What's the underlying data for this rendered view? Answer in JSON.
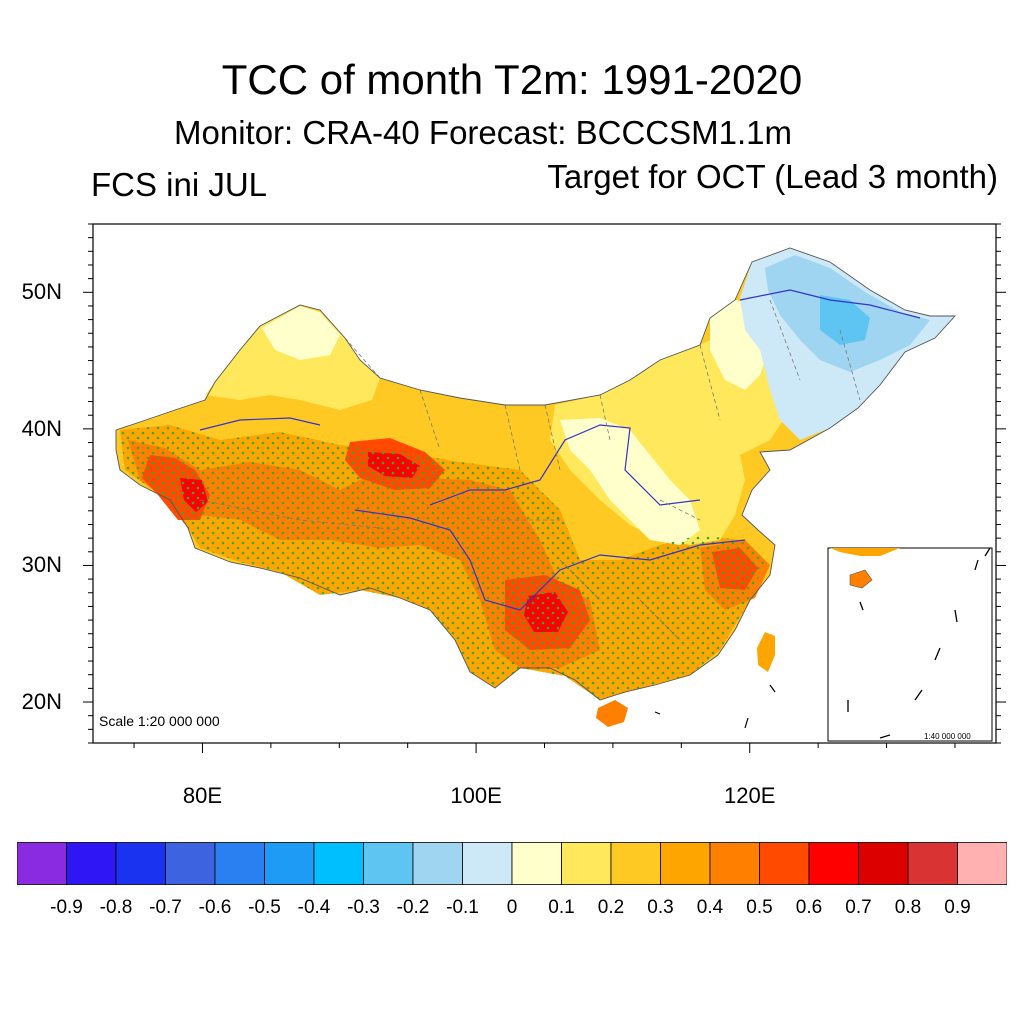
{
  "title": "TCC of month T2m: 1991-2020",
  "subtitle": "Monitor: CRA-40   Forecast: BCCCSM1.1m",
  "left_string": "FCS ini JUL",
  "right_string": "Target for OCT (Lead 3 month)",
  "map": {
    "scale_label": "Scale 1:20 000 000",
    "inset_scale_label": "1:40 000 000",
    "lon_range": [
      72,
      138
    ],
    "lat_range": [
      17,
      55
    ],
    "y_ticks": [
      {
        "value": 20,
        "label": "20N"
      },
      {
        "value": 30,
        "label": "30N"
      },
      {
        "value": 40,
        "label": "40N"
      },
      {
        "value": 50,
        "label": "50N"
      }
    ],
    "x_ticks": [
      {
        "value": 80,
        "label": "80E"
      },
      {
        "value": 100,
        "label": "100E"
      },
      {
        "value": 120,
        "label": "120E"
      }
    ],
    "stipple_color": "#33aa33",
    "river_color": "#3333cc"
  },
  "colorbar": {
    "labels": [
      "-0.9",
      "-0.8",
      "-0.7",
      "-0.6",
      "-0.5",
      "-0.4",
      "-0.3",
      "-0.2",
      "-0.1",
      "0",
      "0.1",
      "0.2",
      "0.3",
      "0.4",
      "0.5",
      "0.6",
      "0.7",
      "0.8",
      "0.9"
    ],
    "colors": [
      "#8a2be2",
      "#2f17f5",
      "#1a33f0",
      "#3e63e0",
      "#2a80f0",
      "#1e9bf5",
      "#00bfff",
      "#5ec5f2",
      "#9fd5f0",
      "#cde9f8",
      "#ffffcc",
      "#ffe85c",
      "#ffc924",
      "#ffa500",
      "#ff8000",
      "#ff4a00",
      "#ff0000",
      "#dd0000",
      "#d93333",
      "#ffb0b0"
    ]
  }
}
